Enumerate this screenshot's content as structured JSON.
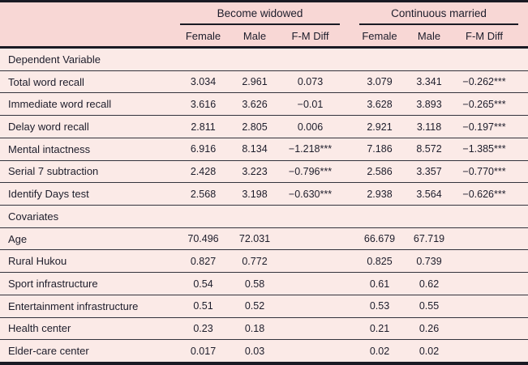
{
  "table": {
    "header": {
      "groups": [
        {
          "label": "Become widowed",
          "columns": [
            "Female",
            "Male",
            "F-M Diff"
          ]
        },
        {
          "label": "Continuous married",
          "columns": [
            "Female",
            "Male",
            "F-M Diff"
          ]
        }
      ]
    },
    "sections": [
      {
        "title": "Dependent Variable",
        "rows": [
          {
            "label": "Total word recall",
            "values": [
              "3.034",
              "2.961",
              "0.073",
              "3.079",
              "3.341",
              "−0.262***"
            ]
          },
          {
            "label": "Immediate word recall",
            "values": [
              "3.616",
              "3.626",
              "−0.01",
              "3.628",
              "3.893",
              "−0.265***"
            ]
          },
          {
            "label": "Delay word recall",
            "values": [
              "2.811",
              "2.805",
              "0.006",
              "2.921",
              "3.118",
              "−0.197***"
            ]
          },
          {
            "label": "Mental intactness",
            "values": [
              "6.916",
              "8.134",
              "−1.218***",
              "7.186",
              "8.572",
              "−1.385***"
            ]
          },
          {
            "label": "Serial 7 subtraction",
            "values": [
              "2.428",
              "3.223",
              "−0.796***",
              "2.586",
              "3.357",
              "−0.770***"
            ]
          },
          {
            "label": "Identify Days test",
            "values": [
              "2.568",
              "3.198",
              "−0.630***",
              "2.938",
              "3.564",
              "−0.626***"
            ]
          }
        ]
      },
      {
        "title": "Covariates",
        "rows": [
          {
            "label": "Age",
            "values": [
              "70.496",
              "72.031",
              "",
              "66.679",
              "67.719",
              ""
            ]
          },
          {
            "label": "Rural Hukou",
            "values": [
              "0.827",
              "0.772",
              "",
              "0.825",
              "0.739",
              ""
            ]
          },
          {
            "label": "Sport infrastructure",
            "values": [
              "0.54",
              "0.58",
              "",
              "0.61",
              "0.62",
              ""
            ]
          },
          {
            "label": "Entertainment infrastructure",
            "values": [
              "0.51",
              "0.52",
              "",
              "0.53",
              "0.55",
              ""
            ]
          },
          {
            "label": "Health center",
            "values": [
              "0.23",
              "0.18",
              "",
              "0.21",
              "0.26",
              ""
            ]
          },
          {
            "label": "Elder-care center",
            "values": [
              "0.017",
              "0.03",
              "",
              "0.02",
              "0.02",
              ""
            ]
          }
        ]
      }
    ],
    "colors": {
      "header_bg": "#f8d7d5",
      "body_bg": "#fbeae7",
      "rule": "#1a1a24",
      "text": "#1d1d2b"
    }
  }
}
